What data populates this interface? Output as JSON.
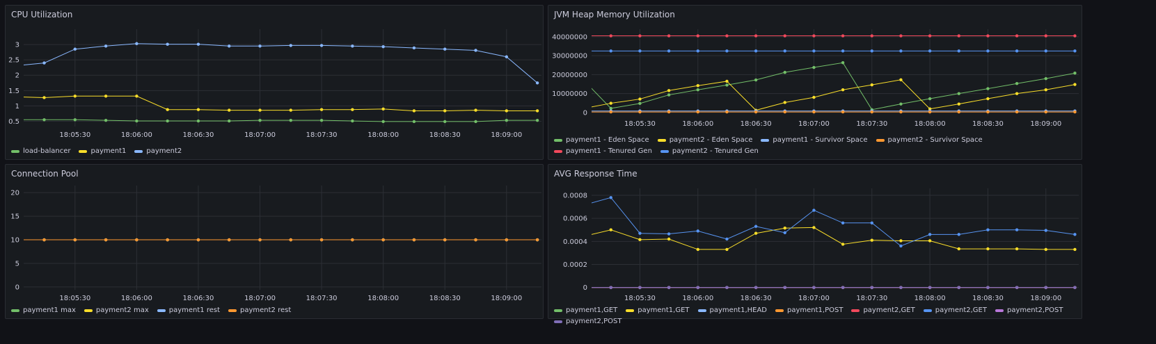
{
  "times": [
    "18:05:00",
    "18:05:15",
    "18:05:30",
    "18:05:45",
    "18:06:00",
    "18:06:15",
    "18:06:30",
    "18:06:45",
    "18:07:00",
    "18:07:15",
    "18:07:30",
    "18:07:45",
    "18:08:00",
    "18:08:15",
    "18:08:30",
    "18:08:45",
    "18:09:00",
    "18:09:15"
  ],
  "chart_data": [
    {
      "type": "line",
      "title": "CPU Utilization",
      "xticks": [
        "18:05:30",
        "18:06:00",
        "18:06:30",
        "18:07:00",
        "18:07:30",
        "18:08:00",
        "18:08:30",
        "18:09:00"
      ],
      "yticks": [
        0.5,
        1,
        1.5,
        2,
        2.5,
        3
      ],
      "ytick_labels": [
        "0.5",
        "1",
        "1.5",
        "2",
        "2.5",
        "3"
      ],
      "ylim": [
        0.33,
        3.5
      ],
      "grid": true,
      "legend": "bottom",
      "series": [
        {
          "name": "load-balancer",
          "color": "#73bf69",
          "values": [
            0.55,
            0.55,
            0.55,
            0.53,
            0.51,
            0.51,
            0.51,
            0.51,
            0.53,
            0.53,
            0.53,
            0.51,
            0.49,
            0.49,
            0.49,
            0.49,
            0.53,
            0.53
          ]
        },
        {
          "name": "payment1",
          "color": "#fade2a",
          "values": [
            1.3,
            1.27,
            1.32,
            1.32,
            1.32,
            0.88,
            0.88,
            0.86,
            0.86,
            0.86,
            0.88,
            0.88,
            0.9,
            0.84,
            0.84,
            0.86,
            0.84,
            0.84
          ]
        },
        {
          "name": "payment2",
          "color": "#8ab8ff",
          "values": [
            2.3,
            2.4,
            2.85,
            2.95,
            3.03,
            3.01,
            3.01,
            2.95,
            2.95,
            2.97,
            2.97,
            2.95,
            2.93,
            2.89,
            2.85,
            2.81,
            2.6,
            1.75
          ]
        }
      ]
    },
    {
      "type": "line",
      "title": "JVM Heap Memory Utilization",
      "xticks": [
        "18:05:30",
        "18:06:00",
        "18:06:30",
        "18:07:00",
        "18:07:30",
        "18:08:00",
        "18:08:30",
        "18:09:00"
      ],
      "yticks": [
        0,
        10000000,
        20000000,
        30000000,
        40000000
      ],
      "ytick_labels": [
        "0",
        "10000000",
        "20000000",
        "30000000",
        "40000000"
      ],
      "ylim": [
        -1500000,
        44000000
      ],
      "grid": true,
      "legend": "bottom",
      "series": [
        {
          "name": "payment1 - Eden Space",
          "color": "#73bf69",
          "values": [
            18000000,
            2200000,
            4800000,
            9300000,
            12000000,
            14500000,
            17200000,
            21200000,
            23800000,
            26300000,
            1500000,
            4500000,
            7300000,
            10000000,
            12600000,
            15300000,
            17900000,
            20800000
          ]
        },
        {
          "name": "payment2 - Eden Space",
          "color": "#fade2a",
          "values": [
            2000000,
            4900000,
            7100000,
            11600000,
            14200000,
            16500000,
            1200000,
            5300000,
            8000000,
            12000000,
            14600000,
            17300000,
            1900000,
            4500000,
            7300000,
            10000000,
            12000000,
            14800000
          ]
        },
        {
          "name": "payment1 - Survivor Space",
          "color": "#8ab8ff",
          "values": [
            800000,
            800000,
            800000,
            800000,
            800000,
            800000,
            800000,
            800000,
            800000,
            800000,
            800000,
            800000,
            800000,
            800000,
            800000,
            800000,
            800000,
            800000
          ]
        },
        {
          "name": "payment2 - Survivor Space",
          "color": "#ff9830",
          "values": [
            300000,
            300000,
            300000,
            300000,
            300000,
            300000,
            300000,
            300000,
            300000,
            300000,
            300000,
            300000,
            300000,
            300000,
            300000,
            300000,
            300000,
            300000
          ]
        },
        {
          "name": "payment1 - Tenured Gen",
          "color": "#f2495c",
          "values": [
            40500000,
            40500000,
            40500000,
            40500000,
            40500000,
            40500000,
            40500000,
            40500000,
            40500000,
            40500000,
            40500000,
            40500000,
            40500000,
            40500000,
            40500000,
            40500000,
            40500000,
            40500000
          ]
        },
        {
          "name": "payment2 - Tenured Gen",
          "color": "#5794f2",
          "values": [
            32500000,
            32500000,
            32500000,
            32500000,
            32500000,
            32500000,
            32500000,
            32500000,
            32500000,
            32500000,
            32500000,
            32500000,
            32500000,
            32500000,
            32500000,
            32500000,
            32500000,
            32500000
          ]
        }
      ]
    },
    {
      "type": "line",
      "title": "Connection Pool",
      "xticks": [
        "18:05:30",
        "18:06:00",
        "18:06:30",
        "18:07:00",
        "18:07:30",
        "18:08:00",
        "18:08:30",
        "18:09:00"
      ],
      "yticks": [
        0,
        5,
        10,
        15,
        20
      ],
      "ytick_labels": [
        "0",
        "5",
        "10",
        "15",
        "20"
      ],
      "ylim": [
        -0.6,
        21.5
      ],
      "grid": true,
      "legend": "bottom",
      "series": [
        {
          "name": "payment1 max",
          "color": "#73bf69",
          "values": [
            10,
            10,
            10,
            10,
            10,
            10,
            10,
            10,
            10,
            10,
            10,
            10,
            10,
            10,
            10,
            10,
            10,
            10
          ]
        },
        {
          "name": "payment2 max",
          "color": "#fade2a",
          "values": [
            10,
            10,
            10,
            10,
            10,
            10,
            10,
            10,
            10,
            10,
            10,
            10,
            10,
            10,
            10,
            10,
            10,
            10
          ]
        },
        {
          "name": "payment1 rest",
          "color": "#8ab8ff",
          "values": [
            10,
            10,
            10,
            10,
            10,
            10,
            10,
            10,
            10,
            10,
            10,
            10,
            10,
            10,
            10,
            10,
            10,
            10
          ]
        },
        {
          "name": "payment2 rest",
          "color": "#ff9830",
          "values": [
            10,
            10,
            10,
            10,
            10,
            10,
            10,
            10,
            10,
            10,
            10,
            10,
            10,
            10,
            10,
            10,
            10,
            10
          ]
        }
      ]
    },
    {
      "type": "line",
      "title": "AVG Response Time",
      "xticks": [
        "18:05:30",
        "18:06:00",
        "18:06:30",
        "18:07:00",
        "18:07:30",
        "18:08:00",
        "18:08:30",
        "18:09:00"
      ],
      "yticks": [
        0,
        0.0002,
        0.0004,
        0.0006,
        0.0008
      ],
      "ytick_labels": [
        "0",
        "0.0002",
        "0.0004",
        "0.0006",
        "0.0008"
      ],
      "ylim": [
        -2e-05,
        0.00086
      ],
      "grid": true,
      "legend": "bottom",
      "series": [
        {
          "name": "payment1,GET",
          "color": "#73bf69",
          "values": [
            0,
            0,
            0,
            0,
            0,
            0,
            0,
            0,
            0,
            0,
            0,
            0,
            0,
            0,
            0,
            0,
            0,
            0
          ]
        },
        {
          "name": "payment1,GET",
          "color": "#fade2a",
          "values": [
            0.00044,
            0.0005,
            0.000415,
            0.00042,
            0.00033,
            0.00033,
            0.00047,
            0.000515,
            0.00052,
            0.000375,
            0.00041,
            0.000405,
            0.000405,
            0.000335,
            0.000335,
            0.000335,
            0.00033,
            0.00033
          ]
        },
        {
          "name": "payment1,HEAD",
          "color": "#8ab8ff",
          "values": [
            0,
            0,
            0,
            0,
            0,
            0,
            0,
            0,
            0,
            0,
            0,
            0,
            0,
            0,
            0,
            0,
            0,
            0
          ]
        },
        {
          "name": "payment1,POST",
          "color": "#ff9830",
          "values": [
            0,
            0,
            0,
            0,
            0,
            0,
            0,
            0,
            0,
            0,
            0,
            0,
            0,
            0,
            0,
            0,
            0,
            0
          ]
        },
        {
          "name": "payment2,GET",
          "color": "#f2495c",
          "values": [
            0,
            0,
            0,
            0,
            0,
            0,
            0,
            0,
            0,
            0,
            0,
            0,
            0,
            0,
            0,
            0,
            0,
            0
          ]
        },
        {
          "name": "payment2,GET",
          "color": "#5794f2",
          "values": [
            0.00071,
            0.00078,
            0.00047,
            0.000465,
            0.00049,
            0.00042,
            0.00053,
            0.000475,
            0.00067,
            0.00056,
            0.00056,
            0.00036,
            0.00046,
            0.00046,
            0.0005,
            0.0005,
            0.000495,
            0.00046
          ]
        },
        {
          "name": "payment2,POST",
          "color": "#b877d9",
          "values": [
            0,
            0,
            0,
            0,
            0,
            0,
            0,
            0,
            0,
            0,
            0,
            0,
            0,
            0,
            0,
            0,
            0,
            0
          ]
        },
        {
          "name": "payment2,POST",
          "color": "#806eb7",
          "values": [
            0,
            0,
            0,
            0,
            0,
            0,
            0,
            0,
            0,
            0,
            0,
            0,
            0,
            0,
            0,
            0,
            0,
            0
          ]
        }
      ]
    }
  ]
}
